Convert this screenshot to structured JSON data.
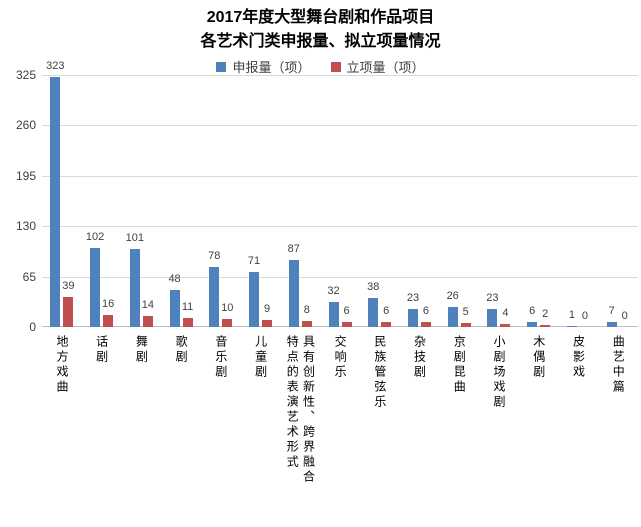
{
  "title": {
    "line1": "2017年度大型舞台剧和作品项目",
    "line2": "各艺术门类申报量、拟立项量情况"
  },
  "legend": {
    "items": [
      {
        "label": "申报量（项）",
        "color": "#4F81BD"
      },
      {
        "label": "立项量（项）",
        "color": "#C0504D"
      }
    ]
  },
  "chart_data": {
    "type": "bar",
    "title": "2017年度大型舞台剧和作品项目 各艺术门类申报量、拟立项量情况",
    "categories": [
      "地方戏曲",
      "话剧",
      "舞剧",
      "歌剧",
      "音乐剧",
      "儿童剧",
      "具有创新性、跨界融合特点的表演艺术形式",
      "交响乐",
      "民族管弦乐",
      "杂技剧",
      "京剧昆曲",
      "小剧场戏剧",
      "木偶剧",
      "皮影戏",
      "曲艺中篇"
    ],
    "series": [
      {
        "name": "申报量（项）",
        "color": "#4F81BD",
        "values": [
          323,
          102,
          101,
          48,
          78,
          71,
          87,
          32,
          38,
          23,
          26,
          23,
          6,
          1,
          7
        ]
      },
      {
        "name": "立项量（项）",
        "color": "#C0504D",
        "values": [
          39,
          16,
          14,
          11,
          10,
          9,
          8,
          6,
          6,
          6,
          5,
          4,
          2,
          0,
          0
        ]
      }
    ],
    "y_ticks": [
      0,
      65,
      130,
      195,
      260,
      325
    ],
    "ylim": [
      0,
      325
    ],
    "grid": true,
    "legend_position": "top",
    "data_labels": true,
    "category_label_orientation": "vertical-upright"
  }
}
